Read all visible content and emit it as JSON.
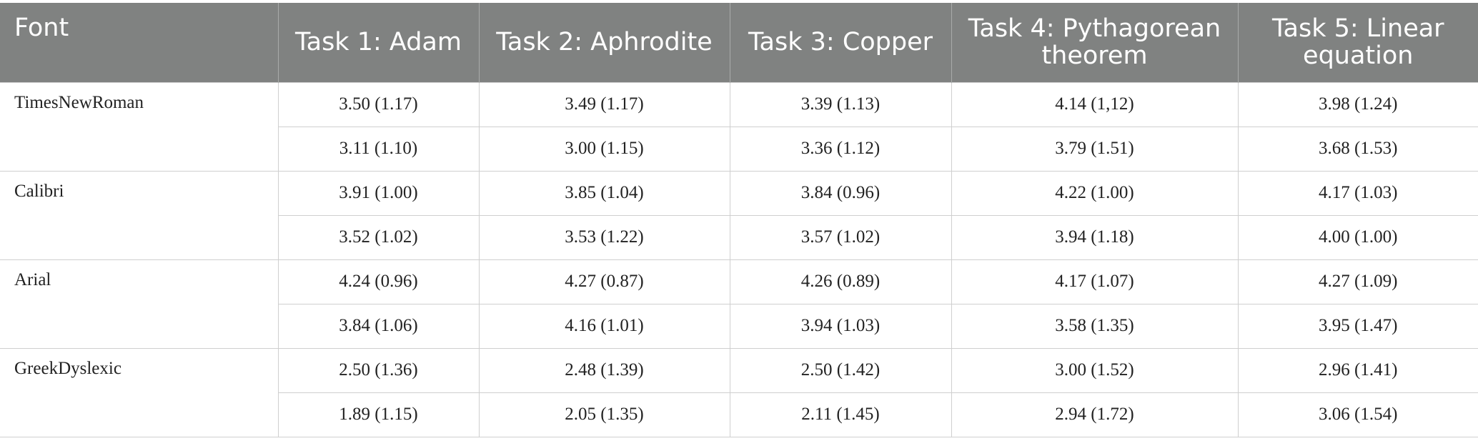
{
  "table": {
    "header": [
      "Font",
      "Task 1: Adam",
      "Task 2: Aphrodite",
      "Task 3: Copper",
      "Task 4: Pythagorean theorem",
      "Task 5: Linear equation"
    ],
    "groups": [
      {
        "font": "TimesNewRoman",
        "rows": [
          [
            "3.50 (1.17)",
            "3.49 (1.17)",
            "3.39 (1.13)",
            "4.14 (1,12)",
            "3.98 (1.24)"
          ],
          [
            "3.11 (1.10)",
            "3.00 (1.15)",
            "3.36 (1.12)",
            "3.79 (1.51)",
            "3.68 (1.53)"
          ]
        ]
      },
      {
        "font": "Calibri",
        "rows": [
          [
            "3.91 (1.00)",
            "3.85 (1.04)",
            "3.84 (0.96)",
            "4.22 (1.00)",
            "4.17 (1.03)"
          ],
          [
            "3.52 (1.02)",
            "3.53 (1.22)",
            "3.57 (1.02)",
            "3.94 (1.18)",
            "4.00 (1.00)"
          ]
        ]
      },
      {
        "font": "Arial",
        "rows": [
          [
            "4.24 (0.96)",
            "4.27 (0.87)",
            "4.26 (0.89)",
            "4.17 (1.07)",
            "4.27 (1.09)"
          ],
          [
            "3.84 (1.06)",
            "4.16 (1.01)",
            "3.94 (1.03)",
            "3.58 (1.35)",
            "3.95 (1.47)"
          ]
        ]
      },
      {
        "font": "GreekDyslexic",
        "rows": [
          [
            "2.50 (1.36)",
            "2.48 (1.39)",
            "2.50 (1.42)",
            "3.00 (1.52)",
            "2.96 (1.41)"
          ],
          [
            "1.89 (1.15)",
            "2.05 (1.35)",
            "2.11 (1.45)",
            "2.94 (1.72)",
            "3.06 (1.54)"
          ]
        ]
      }
    ]
  }
}
